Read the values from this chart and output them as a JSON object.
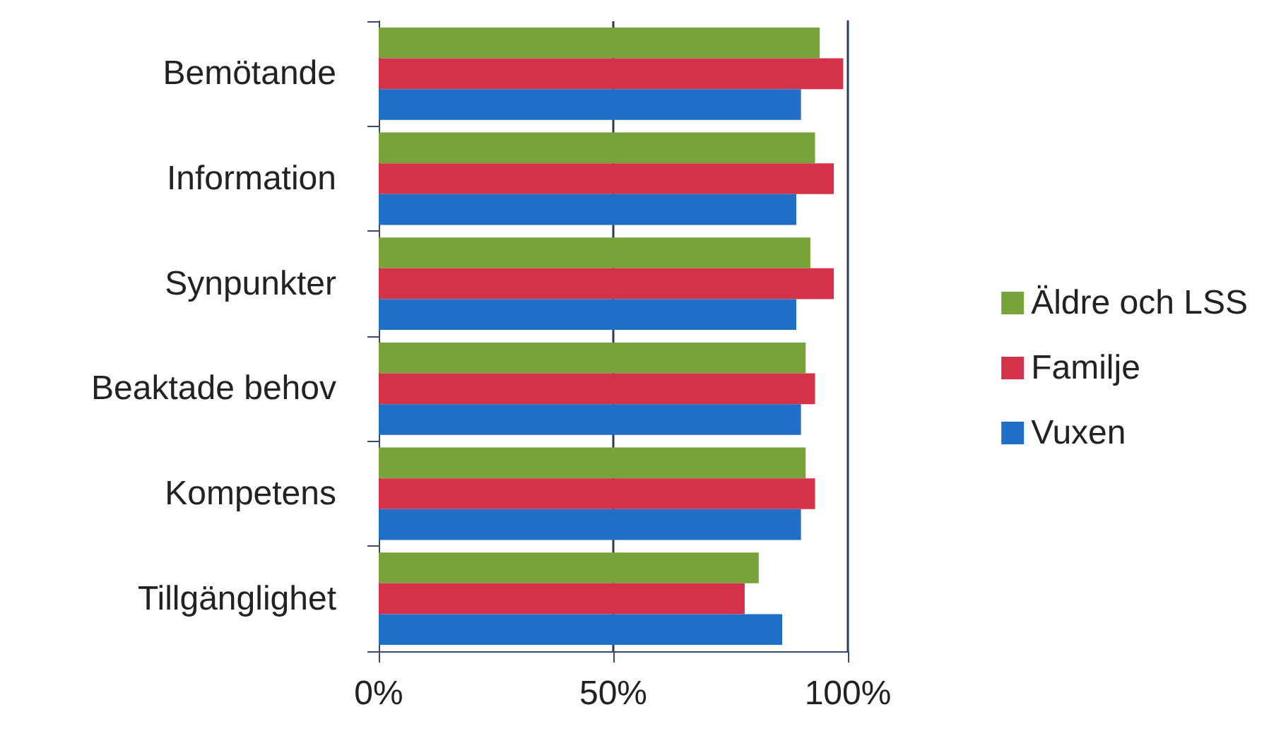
{
  "chart_data": {
    "type": "bar",
    "orientation": "horizontal",
    "categories": [
      "Bemötande",
      "Information",
      "Synpunkter",
      "Beaktade behov",
      "Kompetens",
      "Tillgänglighet"
    ],
    "series": [
      {
        "name": "Äldre och LSS",
        "color": "#77a33a",
        "values": [
          94,
          93,
          92,
          91,
          91,
          81
        ]
      },
      {
        "name": "Familje",
        "color": "#d4324a",
        "values": [
          99,
          97,
          97,
          93,
          93,
          78
        ]
      },
      {
        "name": "Vuxen",
        "color": "#1f6fc6",
        "values": [
          90,
          89,
          89,
          90,
          90,
          86
        ]
      }
    ],
    "xlim": [
      0,
      100
    ],
    "xticks": [
      {
        "value": 0,
        "label": "0%"
      },
      {
        "value": 50,
        "label": "50%"
      },
      {
        "value": 100,
        "label": "100%"
      }
    ],
    "ref_lines": [
      {
        "axis": "x",
        "value": 50,
        "color": "#2a3a5a"
      }
    ],
    "legend": "right"
  }
}
